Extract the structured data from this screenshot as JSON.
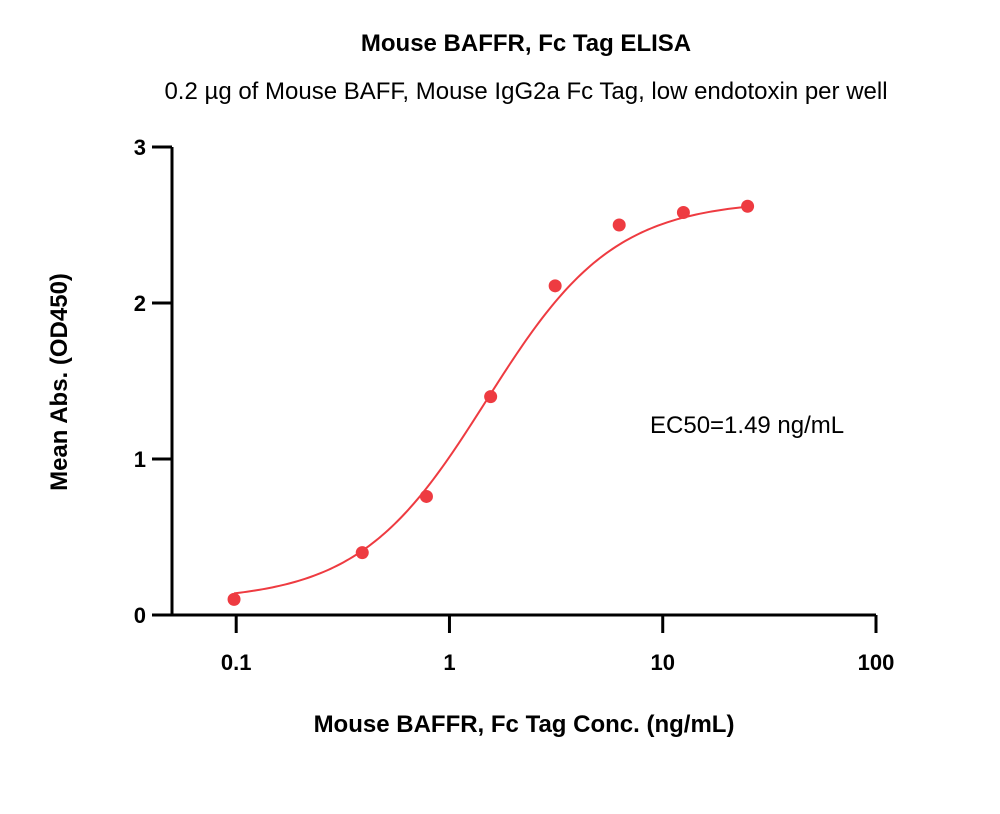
{
  "chart_data": {
    "type": "scatter",
    "title": "Mouse BAFFR, Fc Tag ELISA",
    "subtitle": "0.2 µg of Mouse BAFF, Mouse IgG2a Fc Tag, low endotoxin  per well",
    "xlabel": "Mouse BAFFR, Fc Tag Conc. (ng/mL)",
    "ylabel": "Mean Abs. (OD450)",
    "xscale": "log",
    "xlim": [
      0.05,
      100
    ],
    "ylim": [
      0,
      3
    ],
    "xticks": [
      0.1,
      1,
      10,
      100
    ],
    "xtick_labels": [
      "0.1",
      "1",
      "10",
      "100"
    ],
    "yticks": [
      0,
      1,
      2,
      3
    ],
    "ytick_labels": [
      "0",
      "1",
      "2",
      "3"
    ],
    "grid": false,
    "series": [
      {
        "x": [
          0.0977,
          0.39,
          0.78,
          1.56,
          3.13,
          6.25,
          12.5,
          25
        ],
        "y": [
          0.1,
          0.4,
          0.76,
          1.4,
          2.11,
          2.5,
          2.58,
          2.62
        ],
        "color": "#ee3b41",
        "fit": "sigmoidal 4PL"
      }
    ],
    "annotations": [
      {
        "text": "EC50=1.49 ng/mL"
      }
    ]
  }
}
